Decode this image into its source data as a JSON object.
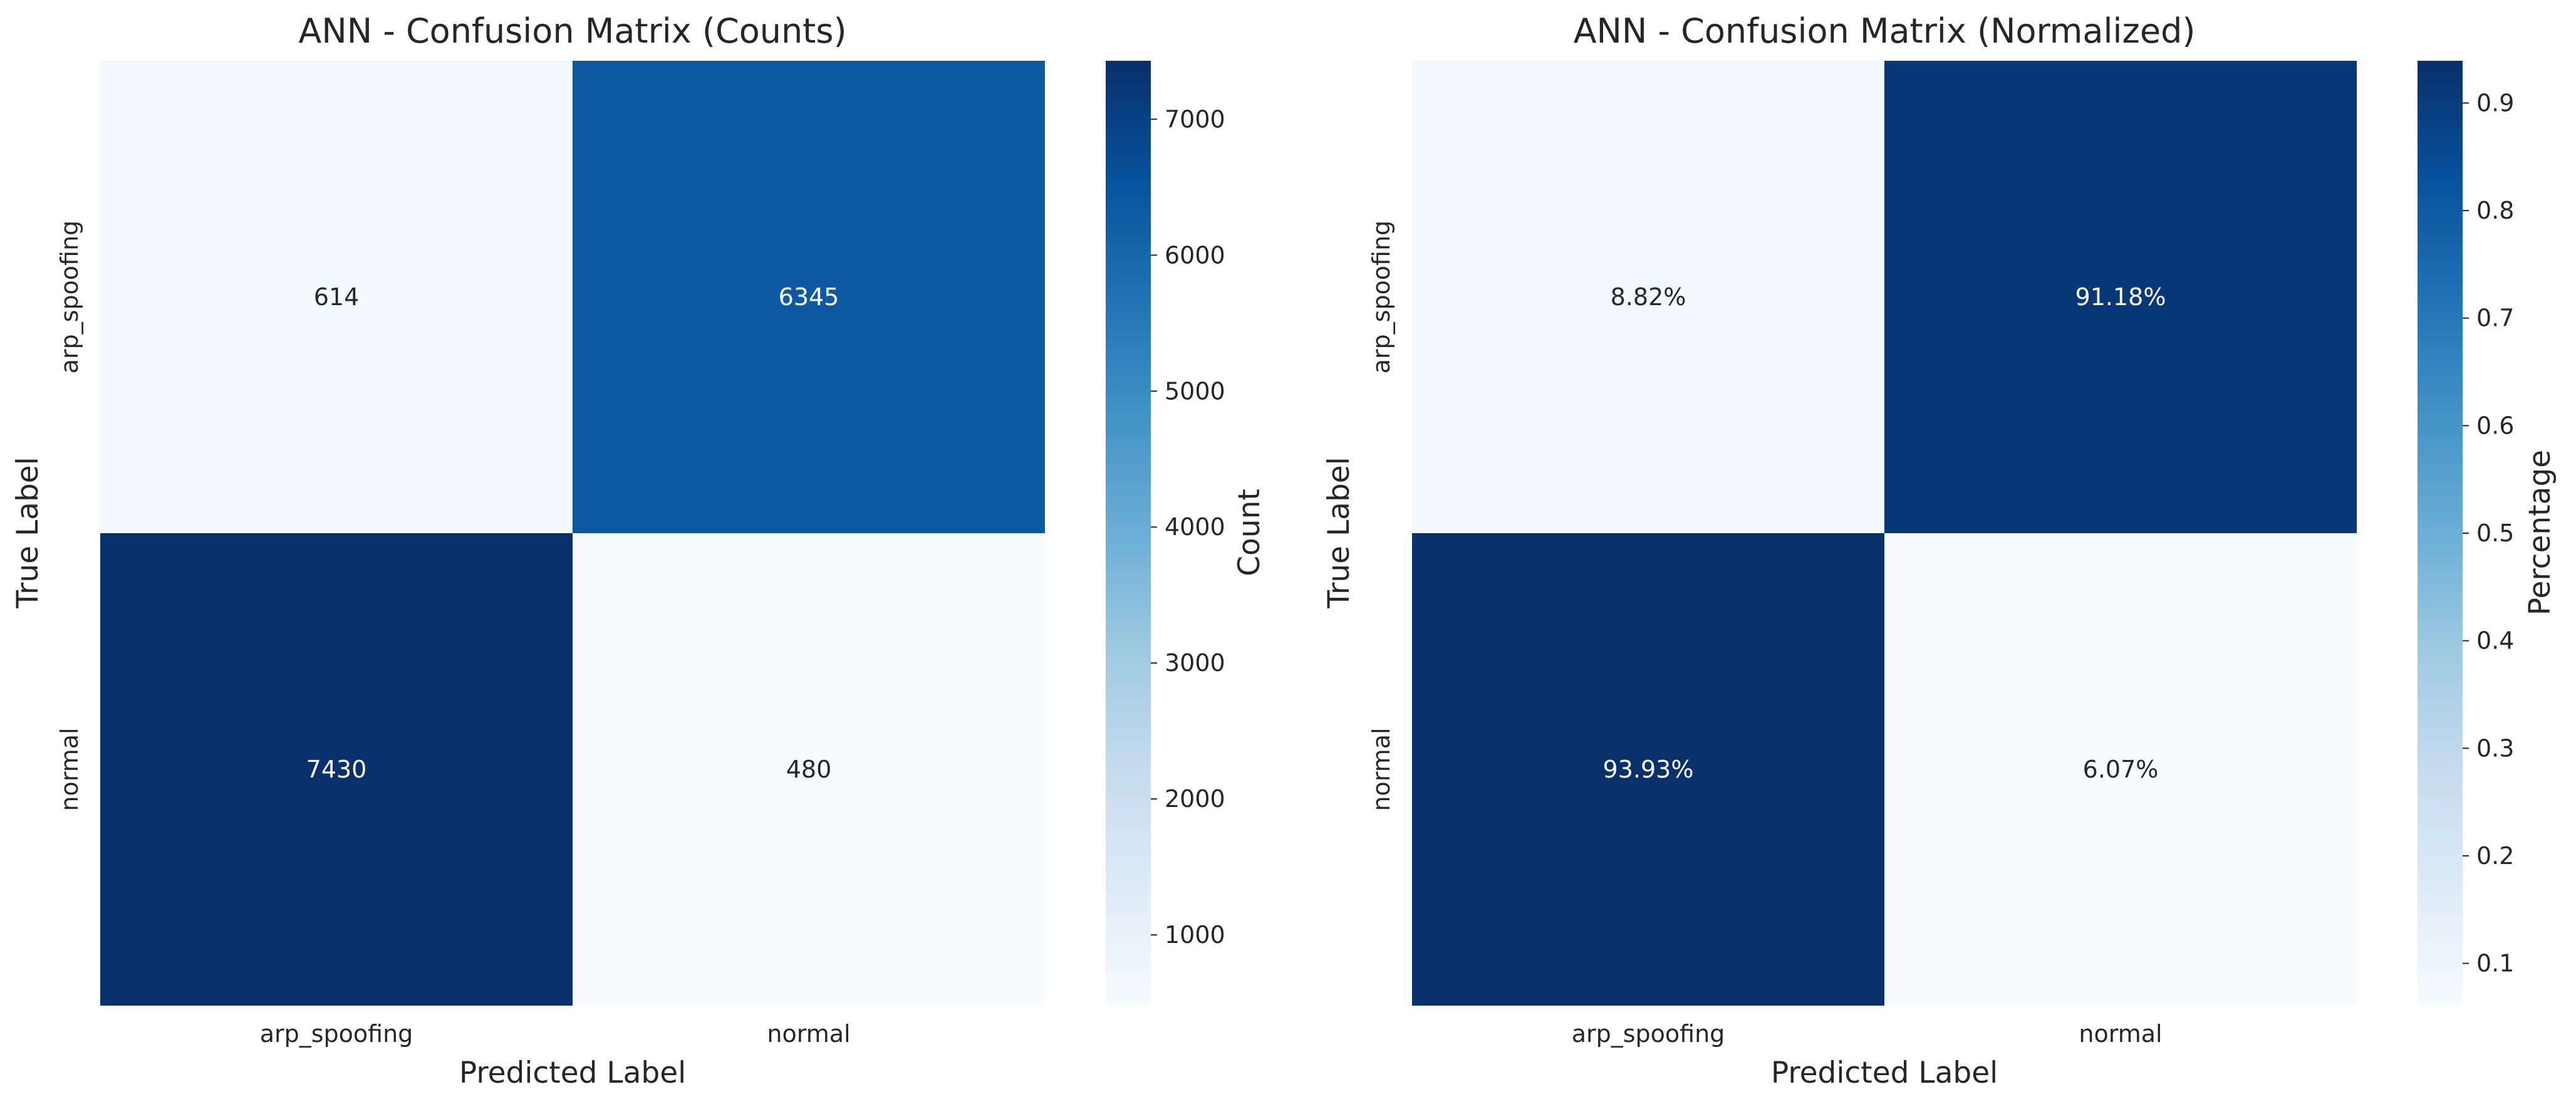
{
  "chart_data": [
    {
      "type": "heatmap",
      "title": "ANN - Confusion Matrix (Counts)",
      "xlabel": "Predicted Label",
      "ylabel": "True Label",
      "x_categories": [
        "arp_spoofing",
        "normal"
      ],
      "y_categories": [
        "arp_spoofing",
        "normal"
      ],
      "values": [
        [
          614,
          6345
        ],
        [
          7430,
          480
        ]
      ],
      "cell_labels": [
        [
          "614",
          "6345"
        ],
        [
          "7430",
          "480"
        ]
      ],
      "colormap": "Blues",
      "colorbar": {
        "label": "Count",
        "vmin": 480,
        "vmax": 7430,
        "ticks": [
          1000,
          2000,
          3000,
          4000,
          5000,
          6000,
          7000
        ],
        "tick_labels": [
          "1000",
          "2000",
          "3000",
          "4000",
          "5000",
          "6000",
          "7000"
        ]
      }
    },
    {
      "type": "heatmap",
      "title": "ANN - Confusion Matrix (Normalized)",
      "xlabel": "Predicted Label",
      "ylabel": "True Label",
      "x_categories": [
        "arp_spoofing",
        "normal"
      ],
      "y_categories": [
        "arp_spoofing",
        "normal"
      ],
      "values": [
        [
          0.0882,
          0.9118
        ],
        [
          0.9393,
          0.0607
        ]
      ],
      "cell_labels": [
        [
          "8.82%",
          "91.18%"
        ],
        [
          "93.93%",
          "6.07%"
        ]
      ],
      "colormap": "Blues",
      "colorbar": {
        "label": "Percentage",
        "vmin": 0.0607,
        "vmax": 0.9393,
        "ticks": [
          0.1,
          0.2,
          0.3,
          0.4,
          0.5,
          0.6,
          0.7,
          0.8,
          0.9
        ],
        "tick_labels": [
          "0.1",
          "0.2",
          "0.3",
          "0.4",
          "0.5",
          "0.6",
          "0.7",
          "0.8",
          "0.9"
        ]
      }
    }
  ]
}
